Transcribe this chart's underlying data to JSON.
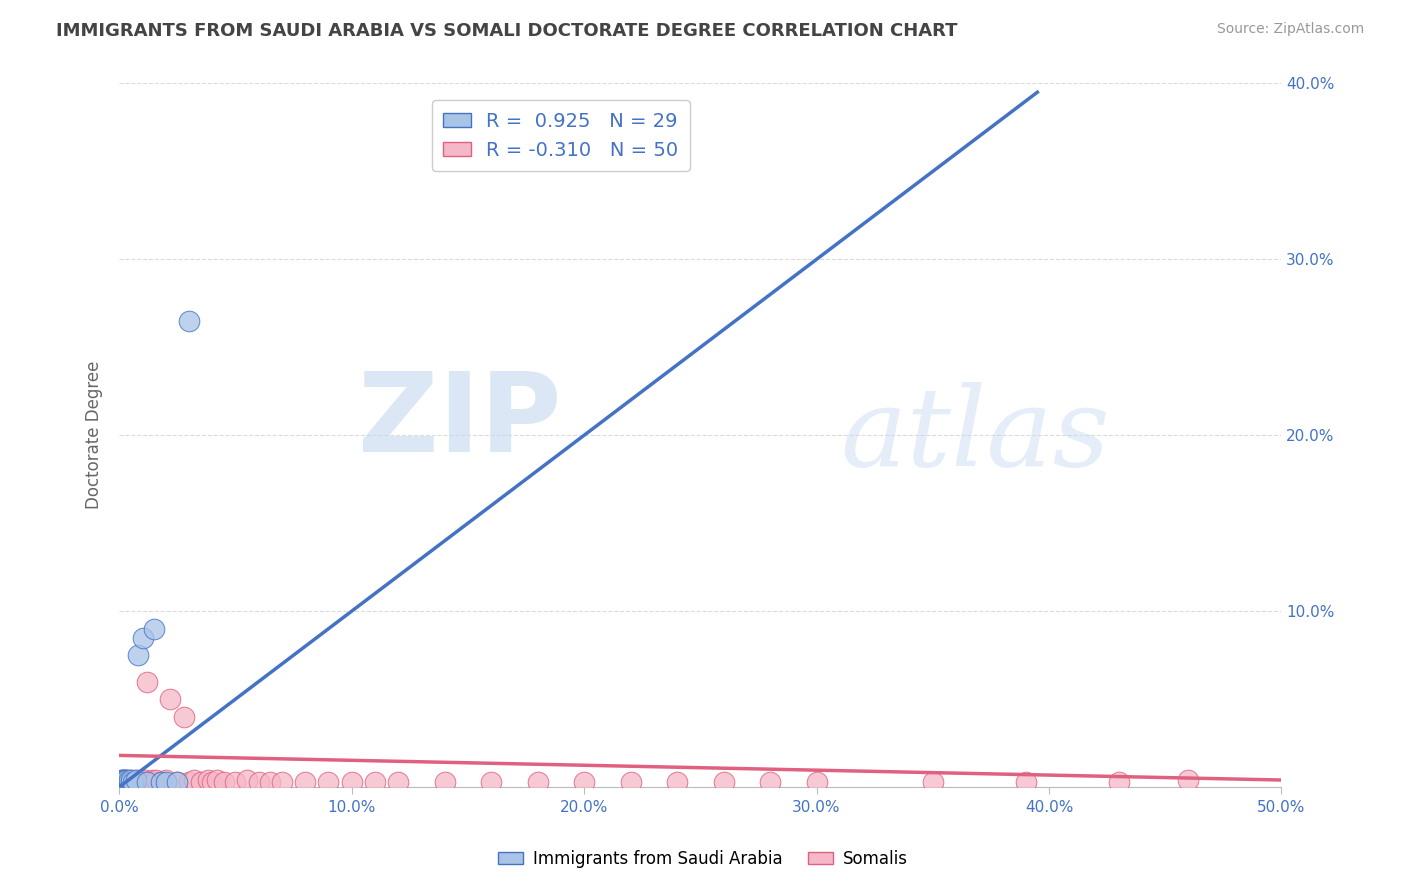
{
  "title": "IMMIGRANTS FROM SAUDI ARABIA VS SOMALI DOCTORATE DEGREE CORRELATION CHART",
  "source_text": "Source: ZipAtlas.com",
  "ylabel": "Doctorate Degree",
  "watermark": "ZIPatlas",
  "xlim": [
    0.0,
    0.5
  ],
  "ylim": [
    0.0,
    0.4
  ],
  "xtick_positions": [
    0.0,
    0.1,
    0.2,
    0.3,
    0.4,
    0.5
  ],
  "xtick_labels": [
    "0.0%",
    "10.0%",
    "20.0%",
    "30.0%",
    "40.0%",
    "50.0%"
  ],
  "ytick_positions": [
    0.0,
    0.1,
    0.2,
    0.3,
    0.4
  ],
  "ytick_labels_right": [
    "",
    "10.0%",
    "20.0%",
    "30.0%",
    "40.0%"
  ],
  "legend_r1": "R =  0.925",
  "legend_n1": "N = 29",
  "legend_r2": "R = -0.310",
  "legend_n2": "N = 50",
  "blue_fill": "#aac4e8",
  "blue_edge": "#4472c4",
  "pink_fill": "#f5b8c8",
  "pink_edge": "#e06080",
  "blue_line_color": "#4472c4",
  "pink_line_color": "#e06080",
  "background_color": "#ffffff",
  "grid_color": "#cccccc",
  "title_color": "#444444",
  "axis_label_color": "#666666",
  "tick_color": "#4472c4",
  "saudi_x": [
    0.001,
    0.001,
    0.001,
    0.001,
    0.001,
    0.001,
    0.001,
    0.002,
    0.002,
    0.002,
    0.002,
    0.002,
    0.003,
    0.003,
    0.003,
    0.004,
    0.004,
    0.005,
    0.005,
    0.006,
    0.007,
    0.008,
    0.01,
    0.012,
    0.015,
    0.018,
    0.02,
    0.025,
    0.03
  ],
  "saudi_y": [
    0.003,
    0.004,
    0.003,
    0.003,
    0.004,
    0.003,
    0.004,
    0.003,
    0.004,
    0.003,
    0.004,
    0.003,
    0.004,
    0.003,
    0.004,
    0.003,
    0.004,
    0.003,
    0.004,
    0.003,
    0.004,
    0.075,
    0.085,
    0.003,
    0.09,
    0.003,
    0.003,
    0.003,
    0.265
  ],
  "somali_x": [
    0.002,
    0.003,
    0.004,
    0.005,
    0.006,
    0.007,
    0.008,
    0.009,
    0.01,
    0.011,
    0.012,
    0.013,
    0.014,
    0.015,
    0.016,
    0.018,
    0.02,
    0.022,
    0.025,
    0.028,
    0.03,
    0.032,
    0.035,
    0.038,
    0.04,
    0.042,
    0.045,
    0.05,
    0.055,
    0.06,
    0.065,
    0.07,
    0.08,
    0.09,
    0.1,
    0.11,
    0.12,
    0.14,
    0.16,
    0.18,
    0.2,
    0.22,
    0.24,
    0.26,
    0.28,
    0.3,
    0.35,
    0.39,
    0.43,
    0.46
  ],
  "somali_y": [
    0.003,
    0.004,
    0.003,
    0.004,
    0.003,
    0.004,
    0.003,
    0.004,
    0.003,
    0.004,
    0.06,
    0.003,
    0.004,
    0.003,
    0.004,
    0.003,
    0.004,
    0.05,
    0.003,
    0.04,
    0.003,
    0.004,
    0.003,
    0.004,
    0.003,
    0.004,
    0.003,
    0.003,
    0.004,
    0.003,
    0.003,
    0.003,
    0.003,
    0.003,
    0.003,
    0.003,
    0.003,
    0.003,
    0.003,
    0.003,
    0.003,
    0.003,
    0.003,
    0.003,
    0.003,
    0.003,
    0.003,
    0.003,
    0.003,
    0.004
  ],
  "blue_line_x": [
    0.0,
    0.395
  ],
  "blue_line_y": [
    0.0,
    0.395
  ],
  "pink_line_x": [
    0.0,
    0.5
  ],
  "pink_line_y": [
    0.018,
    0.004
  ]
}
